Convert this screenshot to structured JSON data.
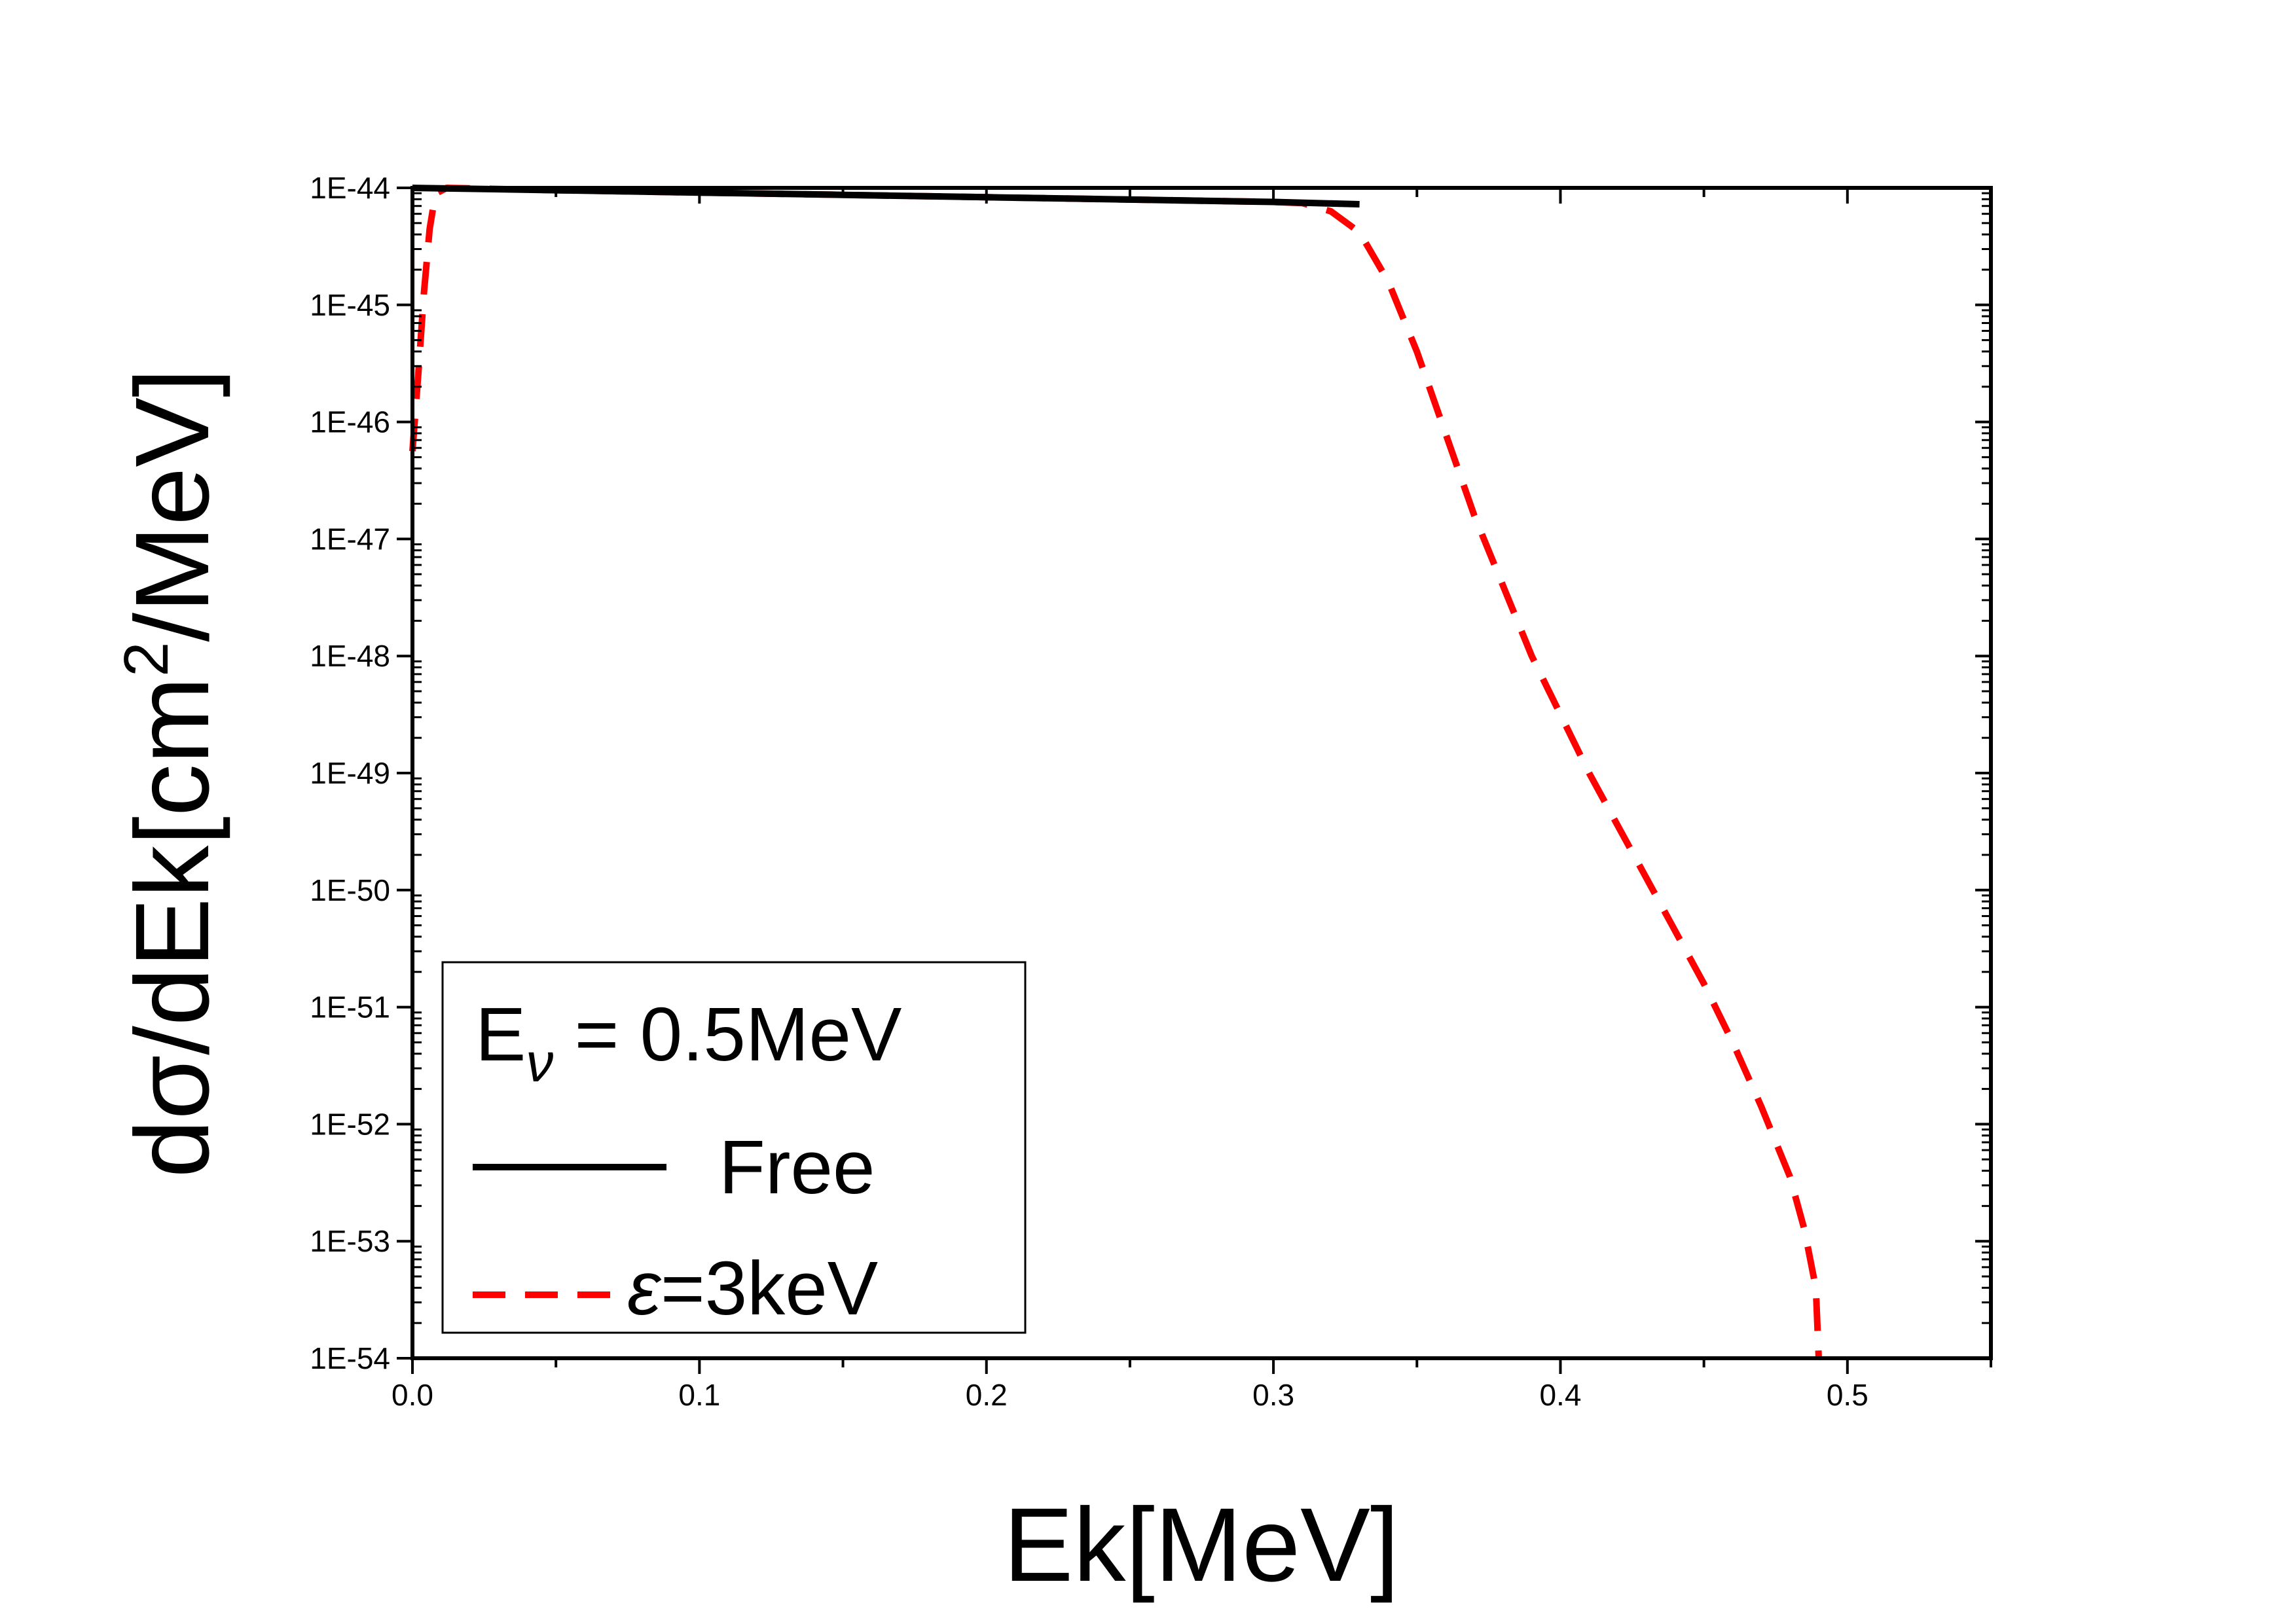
{
  "chart_data": {
    "type": "line",
    "title": "",
    "xlabel": "Ek[MeV]",
    "ylabel": "dσ/dEk[cm²/MeV]",
    "ylabel_parts": {
      "pre": "dσ/dEk[cm",
      "sup": "2",
      "post": "/MeV]"
    },
    "xscale": "linear",
    "yscale": "log",
    "xlim": [
      0.0,
      0.55
    ],
    "ylim_exp": [
      -54,
      -44
    ],
    "x_ticks": [
      0.0,
      0.1,
      0.2,
      0.3,
      0.4,
      0.5
    ],
    "x_tick_labels": [
      "0.0",
      "0.1",
      "0.2",
      "0.3",
      "0.4",
      "0.5"
    ],
    "y_tick_labels": [
      "1E-44",
      "1E-45",
      "1E-46",
      "1E-47",
      "1E-48",
      "1E-49",
      "1E-50",
      "1E-51",
      "1E-52",
      "1E-53",
      "1E-54"
    ],
    "grid": false,
    "legend_position": "bottom-left",
    "legend_header": {
      "main": "E",
      "sub": "ν",
      "rest": " = 0.5MeV"
    },
    "series": [
      {
        "name": "Free",
        "legend_parts": {
          "italic": "",
          "rest": "Free"
        },
        "color": "#000000",
        "style": "solid",
        "points": [
          [
            0.0,
            -44.0
          ],
          [
            0.05,
            -44.02
          ],
          [
            0.1,
            -44.04
          ],
          [
            0.15,
            -44.06
          ],
          [
            0.2,
            -44.08
          ],
          [
            0.25,
            -44.1
          ],
          [
            0.3,
            -44.12
          ],
          [
            0.33,
            -44.14
          ]
        ]
      },
      {
        "name": "ε=3keV",
        "legend_parts": {
          "italic": "ε",
          "rest": "=3keV"
        },
        "color": "#ff0000",
        "style": "dashed",
        "points": [
          [
            0.0,
            -46.25
          ],
          [
            0.002,
            -45.6
          ],
          [
            0.004,
            -44.9
          ],
          [
            0.006,
            -44.35
          ],
          [
            0.008,
            -44.05
          ],
          [
            0.012,
            -44.0
          ],
          [
            0.05,
            -44.02
          ],
          [
            0.1,
            -44.04
          ],
          [
            0.15,
            -44.06
          ],
          [
            0.2,
            -44.08
          ],
          [
            0.25,
            -44.1
          ],
          [
            0.3,
            -44.12
          ],
          [
            0.31,
            -44.13
          ],
          [
            0.32,
            -44.2
          ],
          [
            0.33,
            -44.38
          ],
          [
            0.34,
            -44.8
          ],
          [
            0.35,
            -45.4
          ],
          [
            0.36,
            -46.1
          ],
          [
            0.37,
            -46.8
          ],
          [
            0.38,
            -47.4
          ],
          [
            0.39,
            -48.0
          ],
          [
            0.4,
            -48.5
          ],
          [
            0.41,
            -49.0
          ],
          [
            0.42,
            -49.45
          ],
          [
            0.43,
            -49.9
          ],
          [
            0.44,
            -50.35
          ],
          [
            0.45,
            -50.8
          ],
          [
            0.46,
            -51.3
          ],
          [
            0.47,
            -51.85
          ],
          [
            0.48,
            -52.45
          ],
          [
            0.485,
            -52.9
          ],
          [
            0.489,
            -53.4
          ],
          [
            0.49,
            -54.0
          ]
        ]
      }
    ]
  }
}
